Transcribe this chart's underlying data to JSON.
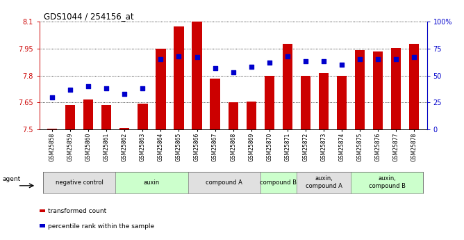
{
  "title": "GDS1044 / 254156_at",
  "samples": [
    "GSM25858",
    "GSM25859",
    "GSM25860",
    "GSM25861",
    "GSM25862",
    "GSM25863",
    "GSM25864",
    "GSM25865",
    "GSM25866",
    "GSM25867",
    "GSM25868",
    "GSM25869",
    "GSM25870",
    "GSM25871",
    "GSM25872",
    "GSM25873",
    "GSM25874",
    "GSM25875",
    "GSM25876",
    "GSM25877",
    "GSM25878"
  ],
  "bar_values": [
    7.505,
    7.635,
    7.668,
    7.638,
    7.508,
    7.645,
    7.95,
    8.075,
    8.1,
    7.785,
    7.653,
    7.657,
    7.8,
    7.975,
    7.8,
    7.815,
    7.8,
    7.942,
    7.935,
    7.952,
    7.975
  ],
  "percentile_values": [
    30,
    37,
    40,
    38,
    33,
    38,
    65,
    68,
    67,
    57,
    53,
    58,
    62,
    68,
    63,
    63,
    60,
    65,
    65,
    65,
    67
  ],
  "bar_color": "#cc0000",
  "dot_color": "#0000cc",
  "ylim_left": [
    7.5,
    8.1
  ],
  "ylim_right": [
    0,
    100
  ],
  "yticks_left": [
    7.5,
    7.65,
    7.8,
    7.95,
    8.1
  ],
  "ytick_labels_left": [
    "7.5",
    "7.65",
    "7.8",
    "7.95",
    "8.1"
  ],
  "yticks_right": [
    0,
    25,
    50,
    75,
    100
  ],
  "ytick_labels_right": [
    "0",
    "25",
    "50",
    "75",
    "100%"
  ],
  "groups": [
    {
      "label": "negative control",
      "start": 0,
      "end": 4,
      "color": "#e0e0e0"
    },
    {
      "label": "auxin",
      "start": 4,
      "end": 8,
      "color": "#ccffcc"
    },
    {
      "label": "compound A",
      "start": 8,
      "end": 12,
      "color": "#e0e0e0"
    },
    {
      "label": "compound B",
      "start": 12,
      "end": 14,
      "color": "#ccffcc"
    },
    {
      "label": "auxin,\ncompound A",
      "start": 14,
      "end": 17,
      "color": "#e0e0e0"
    },
    {
      "label": "auxin,\ncompound B",
      "start": 17,
      "end": 21,
      "color": "#ccffcc"
    }
  ],
  "bg_color": "#ffffff",
  "legend_items": [
    {
      "label": "transformed count",
      "color": "#cc0000"
    },
    {
      "label": "percentile rank within the sample",
      "color": "#0000cc"
    }
  ]
}
